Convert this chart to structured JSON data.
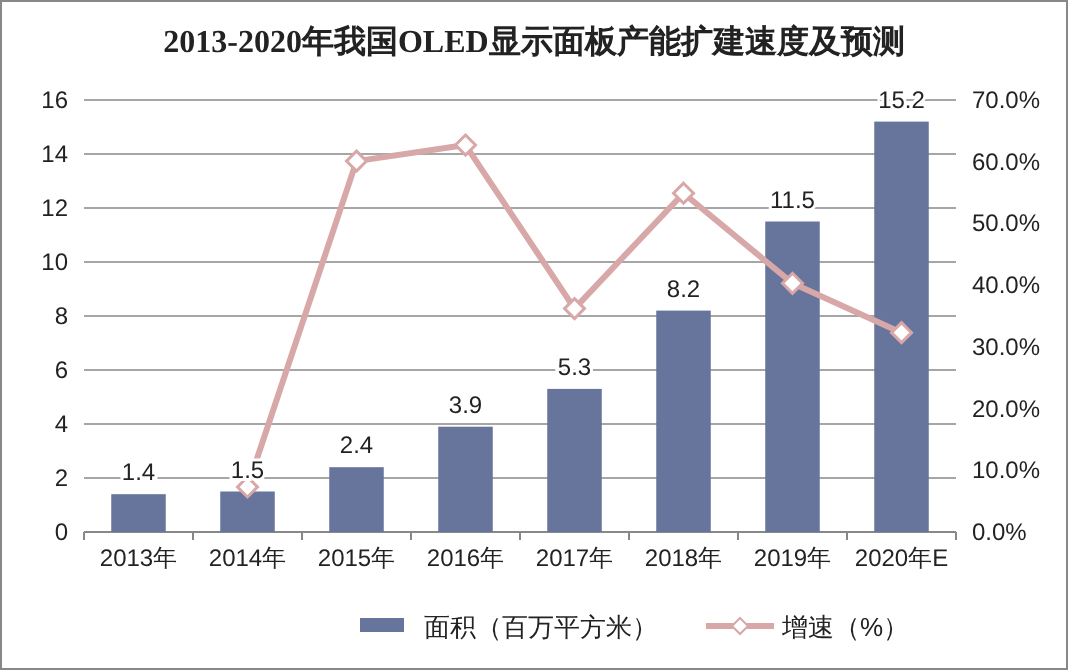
{
  "chart_data": {
    "type": "bar",
    "title": "2013-2020年我国OLED显示面板产能扩建速度及预测",
    "categories": [
      "2013年",
      "2014年",
      "2015年",
      "2016年",
      "2017年",
      "2018年",
      "2019年",
      "2020年E"
    ],
    "series": [
      {
        "name": "面积（百万平方米）",
        "color": "#67749c",
        "values": [
          1.4,
          1.5,
          2.4,
          3.9,
          5.3,
          8.2,
          11.5,
          15.2
        ],
        "data_labels": true
      },
      {
        "name": "增速（%）",
        "type": "line",
        "axis": "y2",
        "color": "#d8a7a7",
        "marker": "diamond",
        "values": [
          null,
          7.3,
          60.1,
          62.7,
          36.2,
          54.9,
          40.3,
          32.3
        ]
      }
    ],
    "ylim": [
      0,
      16
    ],
    "yticks": [
      0,
      2,
      4,
      6,
      8,
      10,
      12,
      14,
      16
    ],
    "y2lim": [
      0,
      70
    ],
    "y2ticks": [
      {
        "value": 0,
        "label": "0.0%"
      },
      {
        "value": 10,
        "label": "10.0%"
      },
      {
        "value": 20,
        "label": "20.0%"
      },
      {
        "value": 30,
        "label": "30.0%"
      },
      {
        "value": 40,
        "label": "40.0%"
      },
      {
        "value": 50,
        "label": "50.0%"
      },
      {
        "value": 60,
        "label": "60.0%"
      },
      {
        "value": 70,
        "label": "70.0%"
      }
    ],
    "grid": "y",
    "legend": "bottom"
  }
}
